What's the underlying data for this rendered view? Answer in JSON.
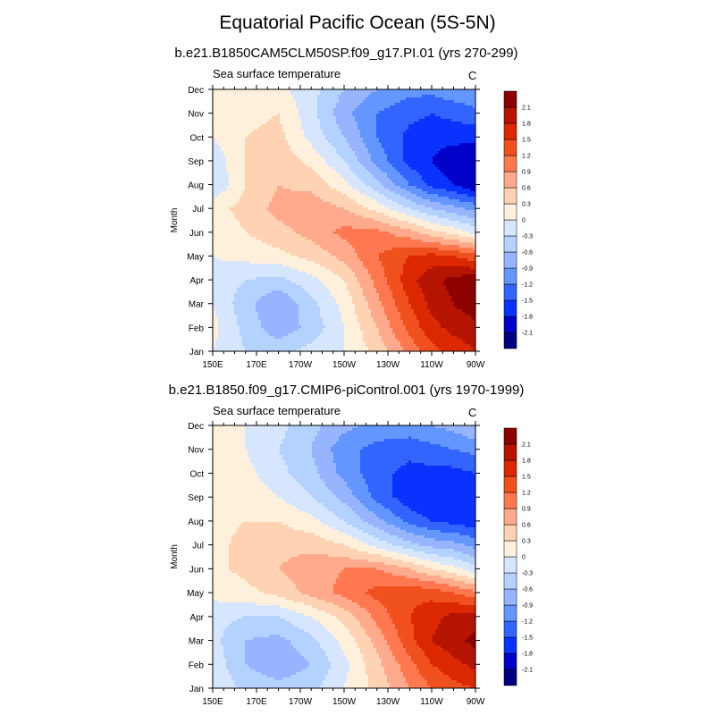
{
  "figure": {
    "title": "Equatorial Pacific Ocean (5S-5N)",
    "colors": [
      "#000080",
      "#0000c8",
      "#0a32ff",
      "#3264ff",
      "#6496ff",
      "#96b4ff",
      "#b4d2ff",
      "#d7e6ff",
      "#fff0dc",
      "#ffd2b4",
      "#ffaa8c",
      "#ff7850",
      "#f0501e",
      "#dc2800",
      "#b41400",
      "#8c0000"
    ],
    "levels": [
      "-2.1",
      "-1.8",
      "-1.5",
      "-1.2",
      "-0.9",
      "-0.6",
      "-0.3",
      "0",
      "0.3",
      "0.6",
      "0.9",
      "1.2",
      "1.5",
      "1.8",
      "2.1"
    ]
  },
  "chart_data": [
    {
      "type": "heatmap",
      "title": "b.e21.B1850CAM5CLM50SP.f09_g17.PI.01 (yrs 270-299)",
      "left_label": "Sea surface temperature",
      "right_label": "C",
      "ylabel": "Month",
      "xlabel": "",
      "x_tick_labels": [
        "150E",
        "170E",
        "170W",
        "150W",
        "130W",
        "110W",
        "90W"
      ],
      "x_tick_values": [
        150,
        170,
        190,
        210,
        230,
        250,
        270
      ],
      "y_tick_labels": [
        "Jan",
        "Feb",
        "Mar",
        "Apr",
        "May",
        "Jun",
        "Jul",
        "Aug",
        "Sep",
        "Oct",
        "Nov",
        "Dec"
      ],
      "x": [
        150,
        165,
        180,
        195,
        210,
        225,
        240,
        250,
        260,
        270
      ],
      "y": [
        "Jan",
        "Feb",
        "Mar",
        "Apr",
        "May",
        "Jun",
        "Jul",
        "Aug",
        "Sep",
        "Oct",
        "Nov",
        "Dec"
      ],
      "values": [
        [
          0.0,
          -0.3,
          -0.4,
          -0.2,
          0.0,
          0.4,
          1.0,
          1.4,
          1.6,
          1.8
        ],
        [
          0.1,
          -0.4,
          -0.8,
          -0.5,
          0.0,
          0.6,
          1.3,
          1.7,
          1.9,
          2.0
        ],
        [
          0.0,
          -0.5,
          -0.9,
          -0.4,
          0.1,
          0.8,
          1.5,
          1.9,
          2.1,
          2.3
        ],
        [
          -0.1,
          -0.3,
          -0.4,
          -0.1,
          0.3,
          1.0,
          1.7,
          2.0,
          2.2,
          2.3
        ],
        [
          0.0,
          0.1,
          0.2,
          0.4,
          0.7,
          1.2,
          1.5,
          1.6,
          1.5,
          1.3
        ],
        [
          0.1,
          0.3,
          0.5,
          0.7,
          1.0,
          1.0,
          0.7,
          0.4,
          0.2,
          -0.1
        ],
        [
          0.2,
          0.4,
          0.7,
          0.8,
          0.6,
          0.2,
          -0.3,
          -0.6,
          -0.8,
          -1.0
        ],
        [
          -0.3,
          0.3,
          0.6,
          0.5,
          0.1,
          -0.5,
          -1.2,
          -1.6,
          -1.8,
          -2.1
        ],
        [
          -0.2,
          0.3,
          0.5,
          0.2,
          -0.3,
          -1.0,
          -1.6,
          -1.8,
          -2.0,
          -2.1
        ],
        [
          0.0,
          0.3,
          0.4,
          -0.1,
          -0.6,
          -1.2,
          -1.6,
          -1.7,
          -1.7,
          -1.7
        ],
        [
          0.1,
          0.2,
          0.3,
          -0.2,
          -0.8,
          -1.2,
          -1.4,
          -1.5,
          -1.4,
          -1.3
        ],
        [
          0.1,
          0.2,
          0.1,
          -0.2,
          -0.6,
          -0.9,
          -1.1,
          -1.1,
          -1.0,
          -0.9
        ]
      ]
    },
    {
      "type": "heatmap",
      "title": "b.e21.B1850.f09_g17.CMIP6-piControl.001 (yrs 1970-1999)",
      "left_label": "Sea surface temperature",
      "right_label": "C",
      "ylabel": "Month",
      "xlabel": "",
      "x_tick_labels": [
        "150E",
        "170E",
        "170W",
        "150W",
        "130W",
        "110W",
        "90W"
      ],
      "x_tick_values": [
        150,
        170,
        190,
        210,
        230,
        250,
        270
      ],
      "y_tick_labels": [
        "Jan",
        "Feb",
        "Mar",
        "Apr",
        "May",
        "Jun",
        "Jul",
        "Aug",
        "Sep",
        "Oct",
        "Nov",
        "Dec"
      ],
      "x": [
        150,
        165,
        180,
        195,
        210,
        225,
        240,
        250,
        260,
        270
      ],
      "y": [
        "Jan",
        "Feb",
        "Mar",
        "Apr",
        "May",
        "Jun",
        "Jul",
        "Aug",
        "Sep",
        "Oct",
        "Nov",
        "Dec"
      ],
      "values": [
        [
          0.0,
          -0.4,
          -0.5,
          -0.4,
          0.0,
          0.4,
          0.9,
          1.2,
          1.4,
          1.5
        ],
        [
          -0.1,
          -0.6,
          -0.8,
          -0.6,
          -0.1,
          0.5,
          1.1,
          1.5,
          1.7,
          1.9
        ],
        [
          -0.2,
          -0.6,
          -0.7,
          -0.4,
          0.1,
          0.7,
          1.4,
          1.8,
          2.0,
          2.2
        ],
        [
          -0.2,
          -0.3,
          -0.3,
          0.0,
          0.4,
          1.0,
          1.5,
          1.7,
          1.9,
          1.9
        ],
        [
          0.1,
          0.2,
          0.4,
          0.7,
          1.0,
          1.3,
          1.4,
          1.4,
          1.2,
          1.0
        ],
        [
          0.2,
          0.4,
          0.6,
          0.8,
          0.9,
          0.9,
          0.6,
          0.3,
          0.1,
          -0.2
        ],
        [
          0.2,
          0.4,
          0.5,
          0.5,
          0.3,
          -0.1,
          -0.5,
          -0.7,
          -0.8,
          -1.0
        ],
        [
          0.2,
          0.3,
          0.3,
          0.1,
          -0.3,
          -0.8,
          -1.3,
          -1.5,
          -1.6,
          -1.7
        ],
        [
          0.2,
          0.2,
          0.0,
          -0.3,
          -0.7,
          -1.3,
          -1.7,
          -1.8,
          -1.8,
          -1.8
        ],
        [
          0.2,
          0.1,
          -0.2,
          -0.5,
          -1.0,
          -1.4,
          -1.6,
          -1.6,
          -1.6,
          -1.5
        ],
        [
          0.2,
          0.0,
          -0.3,
          -0.6,
          -1.1,
          -1.3,
          -1.4,
          -1.3,
          -1.2,
          -1.1
        ],
        [
          0.2,
          0.0,
          -0.2,
          -0.5,
          -0.8,
          -1.0,
          -1.0,
          -0.9,
          -0.8,
          -0.6
        ]
      ]
    }
  ]
}
